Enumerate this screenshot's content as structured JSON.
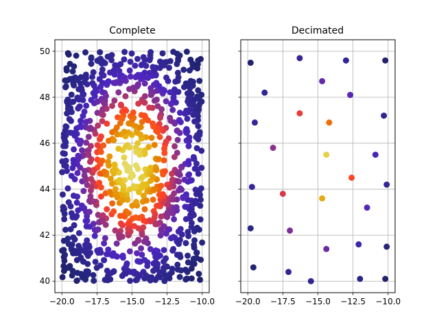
{
  "chart_data": [
    {
      "type": "scatter",
      "title": "Complete",
      "xlim": [
        -20.5,
        -9.5
      ],
      "ylim": [
        39.5,
        50.5
      ],
      "xticks": [
        -20.0,
        -17.5,
        -15.0,
        -12.5,
        -10.0
      ],
      "xtick_labels": [
        "−20.0",
        "−17.5",
        "−15.0",
        "−12.5",
        "−10.0"
      ],
      "yticks": [
        40,
        42,
        44,
        46,
        48,
        50
      ],
      "ytick_labels": [
        "40",
        "42",
        "44",
        "46",
        "48",
        "50"
      ],
      "grid": true,
      "colormap": "CMRmap",
      "color_encoding": "proximity to center",
      "center": [
        -15.0,
        45.0
      ],
      "point_count": 1000,
      "x_range": [
        -20.0,
        -10.0
      ],
      "y_range": [
        40.0,
        50.0
      ]
    },
    {
      "type": "scatter",
      "title": "Decimated",
      "xlim": [
        -20.5,
        -9.5
      ],
      "ylim": [
        39.5,
        50.5
      ],
      "xticks": [
        -20.0,
        -17.5,
        -15.0,
        -12.5,
        -10.0
      ],
      "xtick_labels": [
        "−20.0",
        "−17.5",
        "−15.0",
        "−12.5",
        "−10.0"
      ],
      "yticks": [
        40,
        42,
        44,
        46,
        48,
        50
      ],
      "grid": true,
      "shares_y_axis": true,
      "colormap": "CMRmap",
      "color_encoding": "proximity to center",
      "center": [
        -15.0,
        45.0
      ],
      "points": [
        [
          -19.8,
          49.5
        ],
        [
          -16.3,
          49.7
        ],
        [
          -13.0,
          49.6
        ],
        [
          -10.2,
          49.6
        ],
        [
          -14.7,
          48.7
        ],
        [
          -18.8,
          48.2
        ],
        [
          -12.7,
          48.1
        ],
        [
          -16.3,
          47.3
        ],
        [
          -14.2,
          46.9
        ],
        [
          -19.5,
          46.9
        ],
        [
          -10.3,
          47.2
        ],
        [
          -18.2,
          45.8
        ],
        [
          -14.4,
          45.5
        ],
        [
          -10.9,
          45.5
        ],
        [
          -12.6,
          44.5
        ],
        [
          -19.7,
          44.1
        ],
        [
          -10.1,
          44.2
        ],
        [
          -17.5,
          43.8
        ],
        [
          -14.7,
          43.6
        ],
        [
          -11.5,
          43.2
        ],
        [
          -17.0,
          42.2
        ],
        [
          -19.8,
          42.3
        ],
        [
          -12.1,
          41.6
        ],
        [
          -14.4,
          41.4
        ],
        [
          -10.1,
          41.5
        ],
        [
          -19.6,
          40.6
        ],
        [
          -17.1,
          40.4
        ],
        [
          -15.5,
          40.0
        ],
        [
          -12.0,
          40.1
        ],
        [
          -10.2,
          40.1
        ]
      ]
    }
  ]
}
